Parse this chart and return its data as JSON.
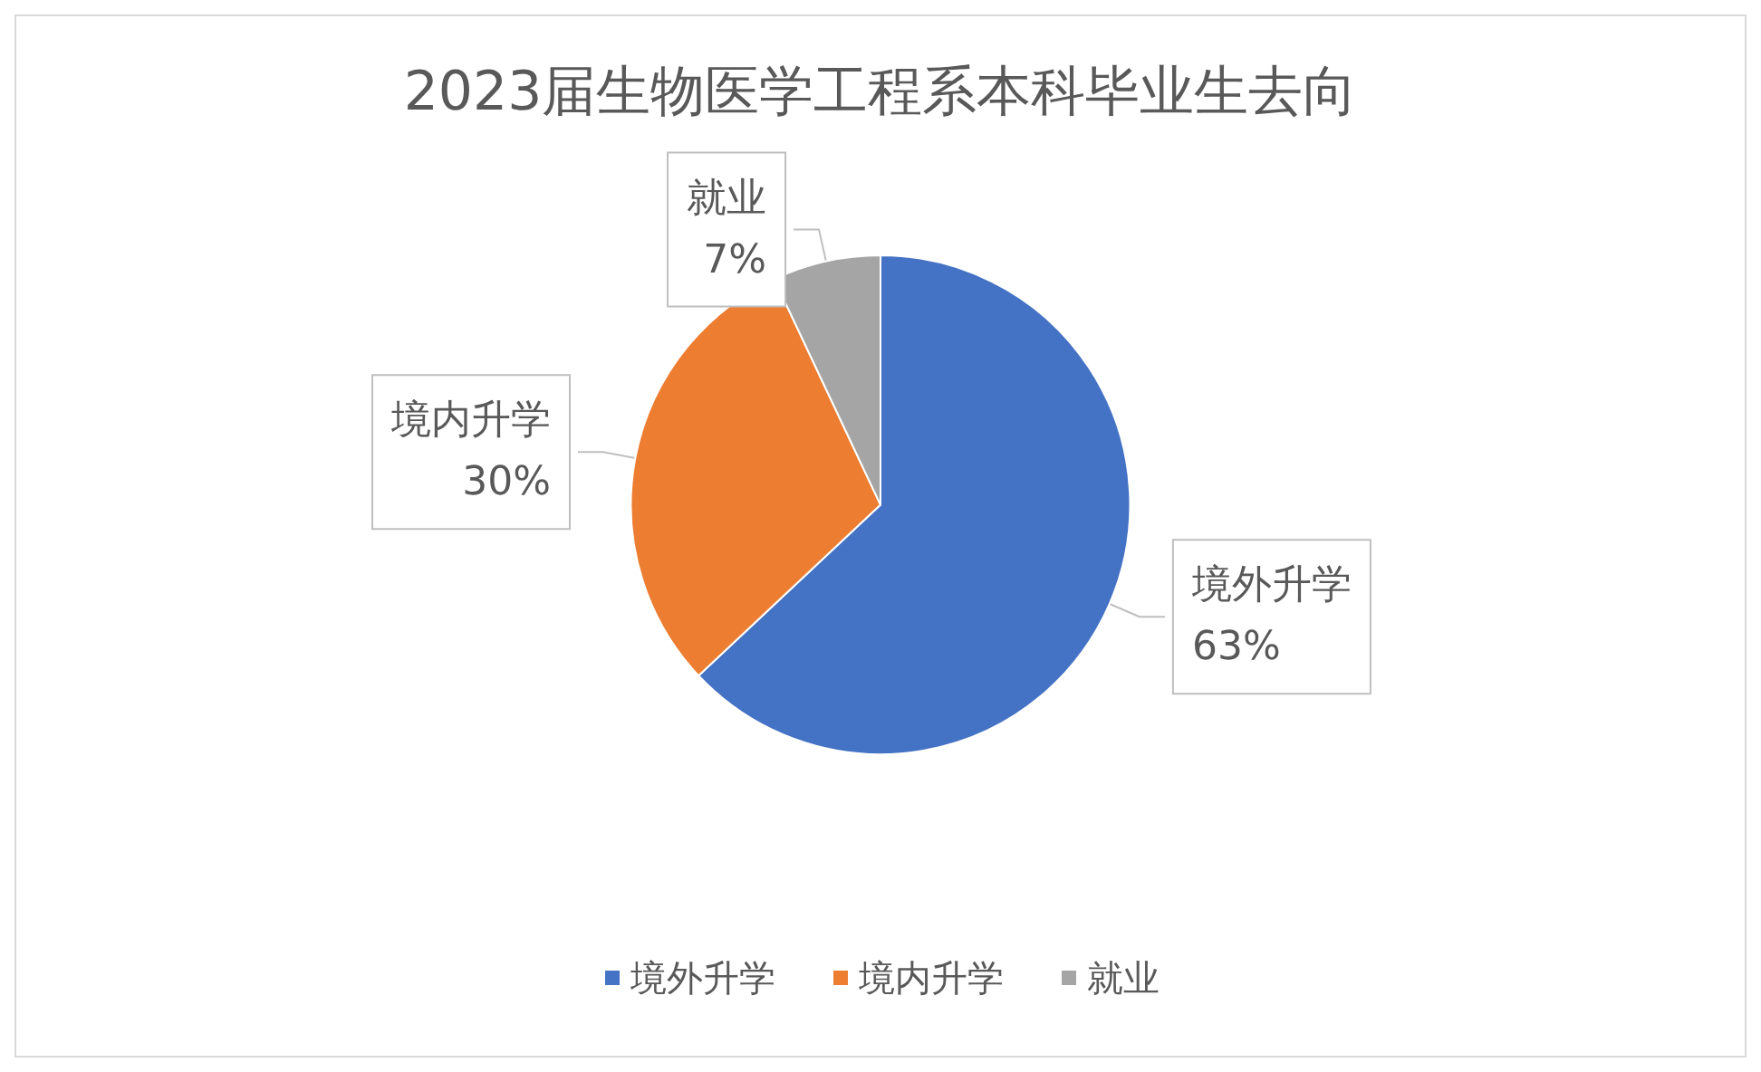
{
  "chart_data": {
    "type": "pie",
    "title": "2023届生物医学工程系本科毕业生去向",
    "categories": [
      "境外升学",
      "境内升学",
      "就业"
    ],
    "values": [
      63,
      30,
      7
    ],
    "colors": [
      "#4472c4",
      "#ed7d31",
      "#a5a5a5"
    ],
    "value_labels": [
      "63%",
      "30%",
      "7%"
    ],
    "legend": "bottom"
  }
}
